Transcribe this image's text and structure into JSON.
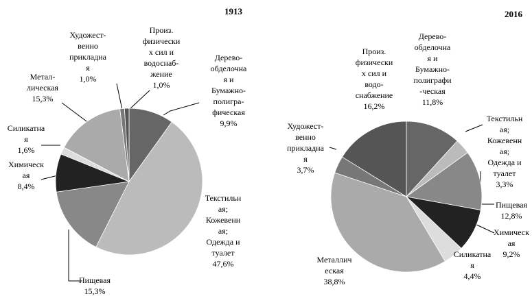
{
  "chart_data": [
    {
      "type": "pie",
      "title": "1913",
      "categories": [
        [
          "Дерево-",
          "обделочна",
          "я и",
          "Бумажно-",
          "полигра-",
          "фическая"
        ],
        [
          "Текстильн",
          "ая;",
          "Кожевенн",
          "ая;",
          "Одежда и",
          "туалет"
        ],
        [
          "Пищевая"
        ],
        [
          "Химическ",
          "ая"
        ],
        [
          "Силикатна",
          "я"
        ],
        [
          "Метал-",
          "лическая"
        ],
        [
          "Художест-",
          "венно",
          "прикладна",
          "я"
        ],
        [
          "Произ.",
          "физически",
          "х сил и",
          "водоснаб-",
          "жение"
        ]
      ],
      "values": [
        9.9,
        47.6,
        15.3,
        8.4,
        1.6,
        15.3,
        1.0,
        1.0
      ],
      "value_labels": [
        "9,9%",
        "47,6%",
        "15,3%",
        "8,4%",
        "1,6%",
        "15,3%",
        "1,0%",
        "1,0%"
      ],
      "colors": [
        "#666666",
        "#bbbbbb",
        "#888888",
        "#222222",
        "#dddddd",
        "#aaaaaa",
        "#777777",
        "#555555"
      ]
    },
    {
      "type": "pie",
      "title": "2016",
      "categories": [
        [
          "Дерево-",
          "обделочна",
          "я и",
          "Бумажно-",
          "полиграфи",
          "-ческая"
        ],
        [
          "Текстильн",
          "ая;",
          "Кожевенн",
          "ая;",
          "Одежда и",
          "туалет"
        ],
        [
          "Пищевая"
        ],
        [
          "Химическ",
          "ая"
        ],
        [
          "Силикатна",
          "я"
        ],
        [
          "Металлич",
          "еская"
        ],
        [
          "Художест-",
          "венно",
          "прикладна",
          "я"
        ],
        [
          "Произ.",
          "физически",
          "х сил и",
          "водо-",
          "снабжение"
        ]
      ],
      "values": [
        11.8,
        3.3,
        12.8,
        9.2,
        4.4,
        38.8,
        3.7,
        16.2
      ],
      "value_labels": [
        "11,8%",
        "3,3%",
        "12,8%",
        "9,2%",
        "4,4%",
        "38,8%",
        "3,7%",
        "16,2%"
      ],
      "colors": [
        "#666666",
        "#bbbbbb",
        "#888888",
        "#222222",
        "#dddddd",
        "#aaaaaa",
        "#777777",
        "#555555"
      ]
    }
  ]
}
